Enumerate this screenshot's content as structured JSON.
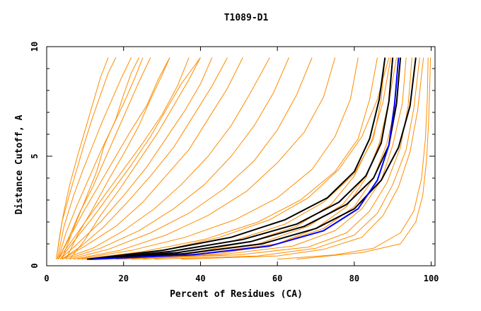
{
  "chart_data": {
    "type": "line",
    "title": "T1089-D1",
    "xlabel": "Percent of Residues (CA)",
    "ylabel": "Distance Cutoff, A",
    "xlim": [
      0,
      101
    ],
    "ylim": [
      0,
      10
    ],
    "x_ticks": [
      {
        "value": 0,
        "label": "0"
      },
      {
        "value": 20,
        "label": "20"
      },
      {
        "value": 40,
        "label": "40"
      },
      {
        "value": 60,
        "label": "60"
      },
      {
        "value": 80,
        "label": "80"
      },
      {
        "value": 100,
        "label": "100"
      }
    ],
    "y_ticks": [
      {
        "value": 0,
        "label": "0"
      },
      {
        "value": 5,
        "label": "5"
      },
      {
        "value": 10,
        "label": "10"
      }
    ],
    "y_minor_ticks": [
      1,
      2,
      3,
      4,
      6,
      7,
      8,
      9
    ],
    "colors": {
      "background": "#ffffff",
      "frame": "#000000",
      "others": "#ff8c00",
      "highlight": "#000000",
      "reference": "#0000ff"
    },
    "series": [
      {
        "group": "others",
        "color": "#ff8c00",
        "x": [
          2.5,
          3.5,
          4.5,
          6,
          8,
          10,
          12,
          14,
          16
        ],
        "y": [
          0.3,
          1.5,
          2.5,
          3.7,
          5,
          6.2,
          7.4,
          8.6,
          9.5
        ]
      },
      {
        "group": "others",
        "color": "#ff8c00",
        "x": [
          2.5,
          4,
          6,
          8,
          10,
          12,
          14,
          16,
          18
        ],
        "y": [
          0.3,
          2,
          3.3,
          4.5,
          5.7,
          6.8,
          7.8,
          8.8,
          9.5
        ]
      },
      {
        "group": "others",
        "color": "#ff8c00",
        "x": [
          2.8,
          4.5,
          7,
          9.5,
          12,
          14.5,
          17,
          19.5,
          22
        ],
        "y": [
          0.3,
          1.8,
          3.2,
          4.4,
          5.5,
          6.6,
          7.6,
          8.6,
          9.5
        ]
      },
      {
        "group": "others",
        "color": "#ff8c00",
        "x": [
          3,
          5,
          8,
          11,
          14,
          17,
          20,
          23,
          25
        ],
        "y": [
          0.3,
          1.5,
          2.8,
          4,
          5.2,
          6.3,
          7.4,
          8.6,
          9.5
        ]
      },
      {
        "group": "others",
        "color": "#ff8c00",
        "x": [
          3,
          5.5,
          8.5,
          12,
          15,
          18,
          21,
          24,
          27
        ],
        "y": [
          0.3,
          1.2,
          2.4,
          3.6,
          4.8,
          6,
          7.2,
          8.4,
          9.5
        ]
      },
      {
        "group": "others",
        "color": "#ff8c00",
        "x": [
          3,
          6,
          10,
          14,
          18,
          22,
          26,
          29,
          32
        ],
        "y": [
          0.3,
          1.3,
          2.6,
          3.8,
          5,
          6.2,
          7.3,
          8.5,
          9.5
        ]
      },
      {
        "group": "others",
        "color": "#ff8c00",
        "x": [
          3,
          6,
          10,
          15,
          20,
          25,
          30,
          34,
          37
        ],
        "y": [
          0.3,
          1,
          2,
          3.2,
          4.4,
          5.6,
          6.9,
          8.2,
          9.5
        ]
      },
      {
        "group": "others",
        "color": "#ff8c00",
        "x": [
          3.5,
          7,
          12,
          17,
          22,
          27,
          31,
          35,
          40
        ],
        "y": [
          0.3,
          1.1,
          2.2,
          3.4,
          4.6,
          5.9,
          7.1,
          8.3,
          9.5
        ]
      },
      {
        "group": "others",
        "color": "#ff8c00",
        "x": [
          3.5,
          8,
          14,
          20,
          26,
          31,
          36,
          40,
          43
        ],
        "y": [
          0.3,
          1,
          2,
          3.2,
          4.5,
          5.8,
          7.1,
          8.3,
          9.5
        ]
      },
      {
        "group": "others",
        "color": "#ff8c00",
        "x": [
          4,
          9,
          15,
          21,
          27,
          33,
          38,
          43,
          47
        ],
        "y": [
          0.3,
          0.9,
          1.8,
          2.9,
          4.1,
          5.4,
          6.8,
          8.2,
          9.5
        ]
      },
      {
        "group": "others",
        "color": "#ff8c00",
        "x": [
          4,
          10,
          18,
          25,
          31,
          37,
          42,
          47,
          51
        ],
        "y": [
          0.3,
          0.9,
          1.8,
          2.9,
          4.1,
          5.3,
          6.7,
          8.1,
          9.5
        ]
      },
      {
        "group": "others",
        "color": "#ff8c00",
        "x": [
          4,
          12,
          20,
          28,
          35,
          42,
          48,
          53,
          58
        ],
        "y": [
          0.3,
          0.8,
          1.6,
          2.6,
          3.7,
          5,
          6.4,
          7.9,
          9.5
        ]
      },
      {
        "group": "others",
        "color": "#ff8c00",
        "x": [
          5,
          14,
          24,
          33,
          41,
          48,
          54,
          59,
          63
        ],
        "y": [
          0.3,
          0.8,
          1.6,
          2.6,
          3.7,
          5,
          6.4,
          7.9,
          9.5
        ]
      },
      {
        "group": "others",
        "color": "#ff8c00",
        "x": [
          6,
          16,
          27,
          37,
          46,
          54,
          60,
          65,
          69
        ],
        "y": [
          0.3,
          0.75,
          1.5,
          2.4,
          3.5,
          4.8,
          6.2,
          7.8,
          9.5
        ]
      },
      {
        "group": "others",
        "color": "#ff8c00",
        "x": [
          7,
          19,
          31,
          42,
          52,
          60,
          67,
          72,
          75
        ],
        "y": [
          0.3,
          0.7,
          1.4,
          2.3,
          3.4,
          4.7,
          6.1,
          7.7,
          9.5
        ]
      },
      {
        "group": "others",
        "color": "#ff8c00",
        "x": [
          8,
          22,
          36,
          49,
          60,
          69,
          75,
          79,
          81
        ],
        "y": [
          0.3,
          0.7,
          1.3,
          2.1,
          3.1,
          4.4,
          5.9,
          7.6,
          9.5
        ]
      },
      {
        "group": "others",
        "color": "#ff8c00",
        "x": [
          9,
          25,
          41,
          55,
          66,
          75,
          81,
          84,
          86
        ],
        "y": [
          0.3,
          0.65,
          1.2,
          2,
          3,
          4.3,
          5.8,
          7.6,
          9.5
        ]
      },
      {
        "group": "others",
        "color": "#ff8c00",
        "x": [
          10,
          30,
          48,
          62,
          72,
          80,
          85,
          87,
          88
        ],
        "y": [
          0.3,
          0.6,
          1.1,
          1.9,
          2.9,
          4.2,
          5.8,
          7.6,
          9.5
        ]
      },
      {
        "group": "others",
        "color": "#ff8c00",
        "x": [
          12,
          35,
          55,
          68,
          77,
          83,
          87,
          89,
          90
        ],
        "y": [
          0.3,
          0.55,
          1,
          1.8,
          2.8,
          4.1,
          5.7,
          7.5,
          9.5
        ]
      },
      {
        "group": "others",
        "color": "#ff8c00",
        "x": [
          14,
          40,
          60,
          72,
          80,
          85,
          88.5,
          91,
          92
        ],
        "y": [
          0.3,
          0.55,
          1,
          1.7,
          2.7,
          4,
          5.6,
          7.5,
          9.5
        ]
      },
      {
        "group": "others",
        "color": "#ff8c00",
        "x": [
          18,
          45,
          64,
          75,
          82,
          87,
          90,
          92.5,
          93.5
        ],
        "y": [
          0.3,
          0.5,
          0.9,
          1.6,
          2.6,
          3.9,
          5.5,
          7.4,
          9.5
        ]
      },
      {
        "group": "others",
        "color": "#ff8c00",
        "x": [
          22,
          50,
          68,
          78,
          84,
          88.5,
          92,
          94,
          95
        ],
        "y": [
          0.3,
          0.5,
          0.85,
          1.5,
          2.5,
          3.8,
          5.4,
          7.3,
          9.5
        ]
      },
      {
        "group": "others",
        "color": "#ff8c00",
        "x": [
          28,
          55,
          70,
          80,
          86,
          90,
          93.5,
          95.5,
          97
        ],
        "y": [
          0.3,
          0.45,
          0.8,
          1.4,
          2.4,
          3.7,
          5.3,
          7.2,
          9.5
        ]
      },
      {
        "group": "others",
        "color": "#ff8c00",
        "x": [
          35,
          60,
          72,
          82,
          87.5,
          91.5,
          94.5,
          96.5,
          98
        ],
        "y": [
          0.3,
          0.45,
          0.75,
          1.3,
          2.3,
          3.6,
          5.2,
          7.1,
          9.5
        ]
      },
      {
        "group": "others",
        "color": "#ff8c00",
        "x": [
          6,
          10,
          14,
          19,
          24,
          29,
          33,
          37,
          40
        ],
        "y": [
          0.3,
          1.2,
          2.3,
          3.5,
          4.8,
          6.1,
          7.3,
          8.5,
          9.5
        ]
      },
      {
        "group": "others",
        "color": "#ff8c00",
        "x": [
          5,
          8,
          12,
          16,
          20,
          24,
          27,
          30,
          32
        ],
        "y": [
          0.3,
          1.4,
          2.6,
          3.9,
          5.1,
          6.4,
          7.6,
          8.7,
          9.5
        ]
      },
      {
        "group": "others",
        "color": "#ff8c00",
        "x": [
          4,
          7,
          10,
          13,
          15,
          18,
          20,
          22,
          24
        ],
        "y": [
          0.3,
          1.7,
          3,
          4.3,
          5.5,
          6.7,
          7.8,
          8.8,
          9.5
        ]
      },
      {
        "group": "others",
        "color": "#ff8c00",
        "x": [
          15,
          30,
          45,
          58,
          68,
          76,
          82,
          86,
          89
        ],
        "y": [
          0.3,
          0.7,
          1.3,
          2.1,
          3.1,
          4.4,
          5.9,
          7.6,
          9.5
        ]
      },
      {
        "group": "others",
        "color": "#ff8c00",
        "x": [
          20,
          38,
          53,
          65,
          74,
          80,
          84.5,
          87.5,
          89.5
        ],
        "y": [
          0.3,
          0.6,
          1.1,
          1.8,
          2.8,
          4.1,
          5.7,
          7.5,
          9.5
        ]
      },
      {
        "group": "others",
        "color": "#ff8c00",
        "x": [
          25,
          45,
          60,
          70,
          78,
          83,
          86.5,
          89,
          91
        ],
        "y": [
          0.3,
          0.55,
          1,
          1.7,
          2.7,
          4,
          5.6,
          7.5,
          9.5
        ]
      },
      {
        "group": "others",
        "color": "#ff8c00",
        "x": [
          60,
          75,
          85,
          92,
          95.5,
          97.5,
          98.5,
          99,
          99.2
        ],
        "y": [
          0.3,
          0.5,
          0.8,
          1.5,
          2.5,
          4,
          5.8,
          7.6,
          9.5
        ]
      },
      {
        "group": "others",
        "color": "#ff8c00",
        "x": [
          65,
          82,
          92,
          96,
          97.8,
          98.8,
          99.3,
          99.6,
          99.8
        ],
        "y": [
          0.3,
          0.6,
          1,
          2,
          3.2,
          4.8,
          6.5,
          8,
          9.5
        ]
      },
      {
        "group": "highlight",
        "color": "#000000",
        "x": [
          10.5,
          30,
          48,
          62,
          73,
          80,
          84,
          86.5,
          88
        ],
        "y": [
          0.3,
          0.7,
          1.3,
          2.1,
          3.1,
          4.3,
          5.8,
          7.6,
          9.5
        ]
      },
      {
        "group": "highlight",
        "color": "#000000",
        "x": [
          11,
          32,
          51,
          65,
          76,
          83,
          87,
          89,
          90
        ],
        "y": [
          0.3,
          0.65,
          1.2,
          1.9,
          2.9,
          4.1,
          5.6,
          7.5,
          9.5
        ]
      },
      {
        "group": "highlight",
        "color": "#000000",
        "x": [
          11,
          34,
          53,
          67,
          78,
          85,
          89,
          91,
          92
        ],
        "y": [
          0.3,
          0.6,
          1.1,
          1.8,
          2.8,
          4,
          5.5,
          7.4,
          9.5
        ]
      },
      {
        "group": "highlight",
        "color": "#000000",
        "x": [
          11.5,
          36,
          56,
          70,
          80,
          87,
          91.5,
          94.5,
          96
        ],
        "y": [
          0.3,
          0.55,
          1,
          1.7,
          2.6,
          3.9,
          5.4,
          7.3,
          9.5
        ]
      },
      {
        "group": "reference",
        "color": "#0000ff",
        "x": [
          12,
          38,
          58,
          72,
          81,
          86,
          89,
          90.5,
          91.5
        ],
        "y": [
          0.3,
          0.5,
          0.9,
          1.6,
          2.6,
          3.9,
          5.5,
          7.4,
          9.5
        ]
      }
    ]
  }
}
